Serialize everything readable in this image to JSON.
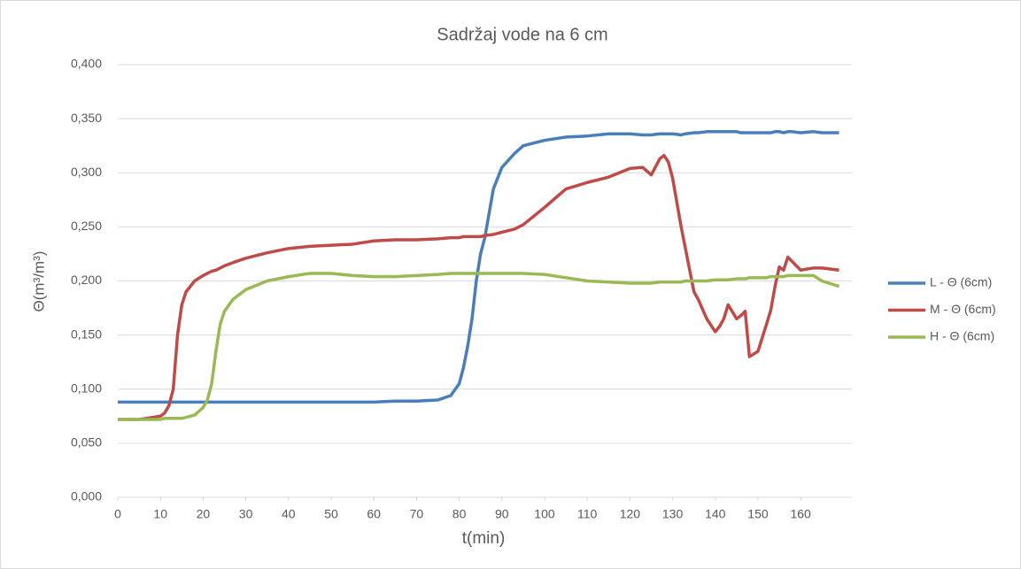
{
  "chart_data": {
    "type": "line",
    "title": "Sadržaj vode na 6 cm",
    "xlabel": "t(min)",
    "ylabel": "Θ(m³/m³)",
    "x": [
      0,
      5,
      10,
      11,
      12,
      13,
      14,
      15,
      16,
      18,
      20,
      21,
      22,
      23,
      24,
      25,
      27,
      30,
      35,
      40,
      45,
      50,
      55,
      60,
      65,
      70,
      75,
      78,
      80,
      81,
      82,
      83,
      84,
      85,
      86,
      88,
      90,
      93,
      95,
      100,
      105,
      110,
      115,
      120,
      123,
      125,
      127,
      128,
      129,
      130,
      132,
      133,
      135,
      136,
      138,
      140,
      141,
      142,
      143,
      145,
      146,
      147,
      148,
      150,
      152,
      153,
      154,
      155,
      156,
      157,
      158,
      160,
      163,
      165,
      169
    ],
    "series": [
      {
        "name": "L - Θ (6cm)",
        "color": "#4a7ebb",
        "values": [
          0.088,
          0.088,
          0.088,
          0.088,
          0.088,
          0.088,
          0.088,
          0.088,
          0.088,
          0.088,
          0.088,
          0.088,
          0.088,
          0.088,
          0.088,
          0.088,
          0.088,
          0.088,
          0.088,
          0.088,
          0.088,
          0.088,
          0.088,
          0.088,
          0.089,
          0.089,
          0.09,
          0.094,
          0.105,
          0.12,
          0.14,
          0.165,
          0.2,
          0.225,
          0.24,
          0.285,
          0.305,
          0.318,
          0.325,
          0.33,
          0.333,
          0.334,
          0.336,
          0.336,
          0.335,
          0.335,
          0.336,
          0.336,
          0.336,
          0.336,
          0.335,
          0.336,
          0.337,
          0.337,
          0.338,
          0.338,
          0.338,
          0.338,
          0.338,
          0.338,
          0.337,
          0.337,
          0.337,
          0.337,
          0.337,
          0.337,
          0.338,
          0.338,
          0.337,
          0.338,
          0.338,
          0.337,
          0.338,
          0.337,
          0.337
        ]
      },
      {
        "name": "M - Θ (6cm)",
        "color": "#be4b48",
        "values": [
          0.072,
          0.072,
          0.075,
          0.078,
          0.085,
          0.1,
          0.15,
          0.178,
          0.19,
          0.2,
          0.205,
          0.207,
          0.209,
          0.21,
          0.212,
          0.214,
          0.217,
          0.221,
          0.226,
          0.23,
          0.232,
          0.233,
          0.234,
          0.237,
          0.238,
          0.238,
          0.239,
          0.24,
          0.24,
          0.241,
          0.241,
          0.241,
          0.241,
          0.241,
          0.242,
          0.243,
          0.245,
          0.248,
          0.252,
          0.268,
          0.285,
          0.291,
          0.296,
          0.304,
          0.305,
          0.298,
          0.313,
          0.316,
          0.31,
          0.295,
          0.25,
          0.23,
          0.19,
          0.183,
          0.165,
          0.153,
          0.158,
          0.165,
          0.178,
          0.165,
          0.168,
          0.172,
          0.13,
          0.135,
          0.16,
          0.173,
          0.195,
          0.213,
          0.21,
          0.222,
          0.218,
          0.21,
          0.212,
          0.212,
          0.21
        ]
      },
      {
        "name": "H - Θ (6cm)",
        "color": "#98b954",
        "values": [
          0.072,
          0.072,
          0.072,
          0.073,
          0.073,
          0.073,
          0.073,
          0.073,
          0.074,
          0.076,
          0.083,
          0.09,
          0.105,
          0.135,
          0.16,
          0.172,
          0.183,
          0.192,
          0.2,
          0.204,
          0.207,
          0.207,
          0.205,
          0.204,
          0.204,
          0.205,
          0.206,
          0.207,
          0.207,
          0.207,
          0.207,
          0.207,
          0.207,
          0.207,
          0.207,
          0.207,
          0.207,
          0.207,
          0.207,
          0.206,
          0.203,
          0.2,
          0.199,
          0.198,
          0.198,
          0.198,
          0.199,
          0.199,
          0.199,
          0.199,
          0.199,
          0.2,
          0.2,
          0.2,
          0.2,
          0.201,
          0.201,
          0.201,
          0.201,
          0.202,
          0.202,
          0.202,
          0.203,
          0.203,
          0.203,
          0.204,
          0.204,
          0.204,
          0.204,
          0.205,
          0.205,
          0.205,
          0.205,
          0.2,
          0.195
        ]
      }
    ],
    "xlim": [
      0,
      172
    ],
    "xticks": [
      0,
      10,
      20,
      30,
      40,
      50,
      60,
      70,
      80,
      90,
      100,
      110,
      120,
      130,
      140,
      150,
      160
    ],
    "ylim": [
      0,
      0.4
    ],
    "yticks": [
      {
        "value": 0,
        "label": "0,000"
      },
      {
        "value": 0.05,
        "label": "0,050"
      },
      {
        "value": 0.1,
        "label": "0,100"
      },
      {
        "value": 0.15,
        "label": "0,150"
      },
      {
        "value": 0.2,
        "label": "0,200"
      },
      {
        "value": 0.25,
        "label": "0,250"
      },
      {
        "value": 0.3,
        "label": "0,300"
      },
      {
        "value": 0.35,
        "label": "0,350"
      },
      {
        "value": 0.4,
        "label": "0,400"
      }
    ],
    "grid": true,
    "legend": "right"
  }
}
